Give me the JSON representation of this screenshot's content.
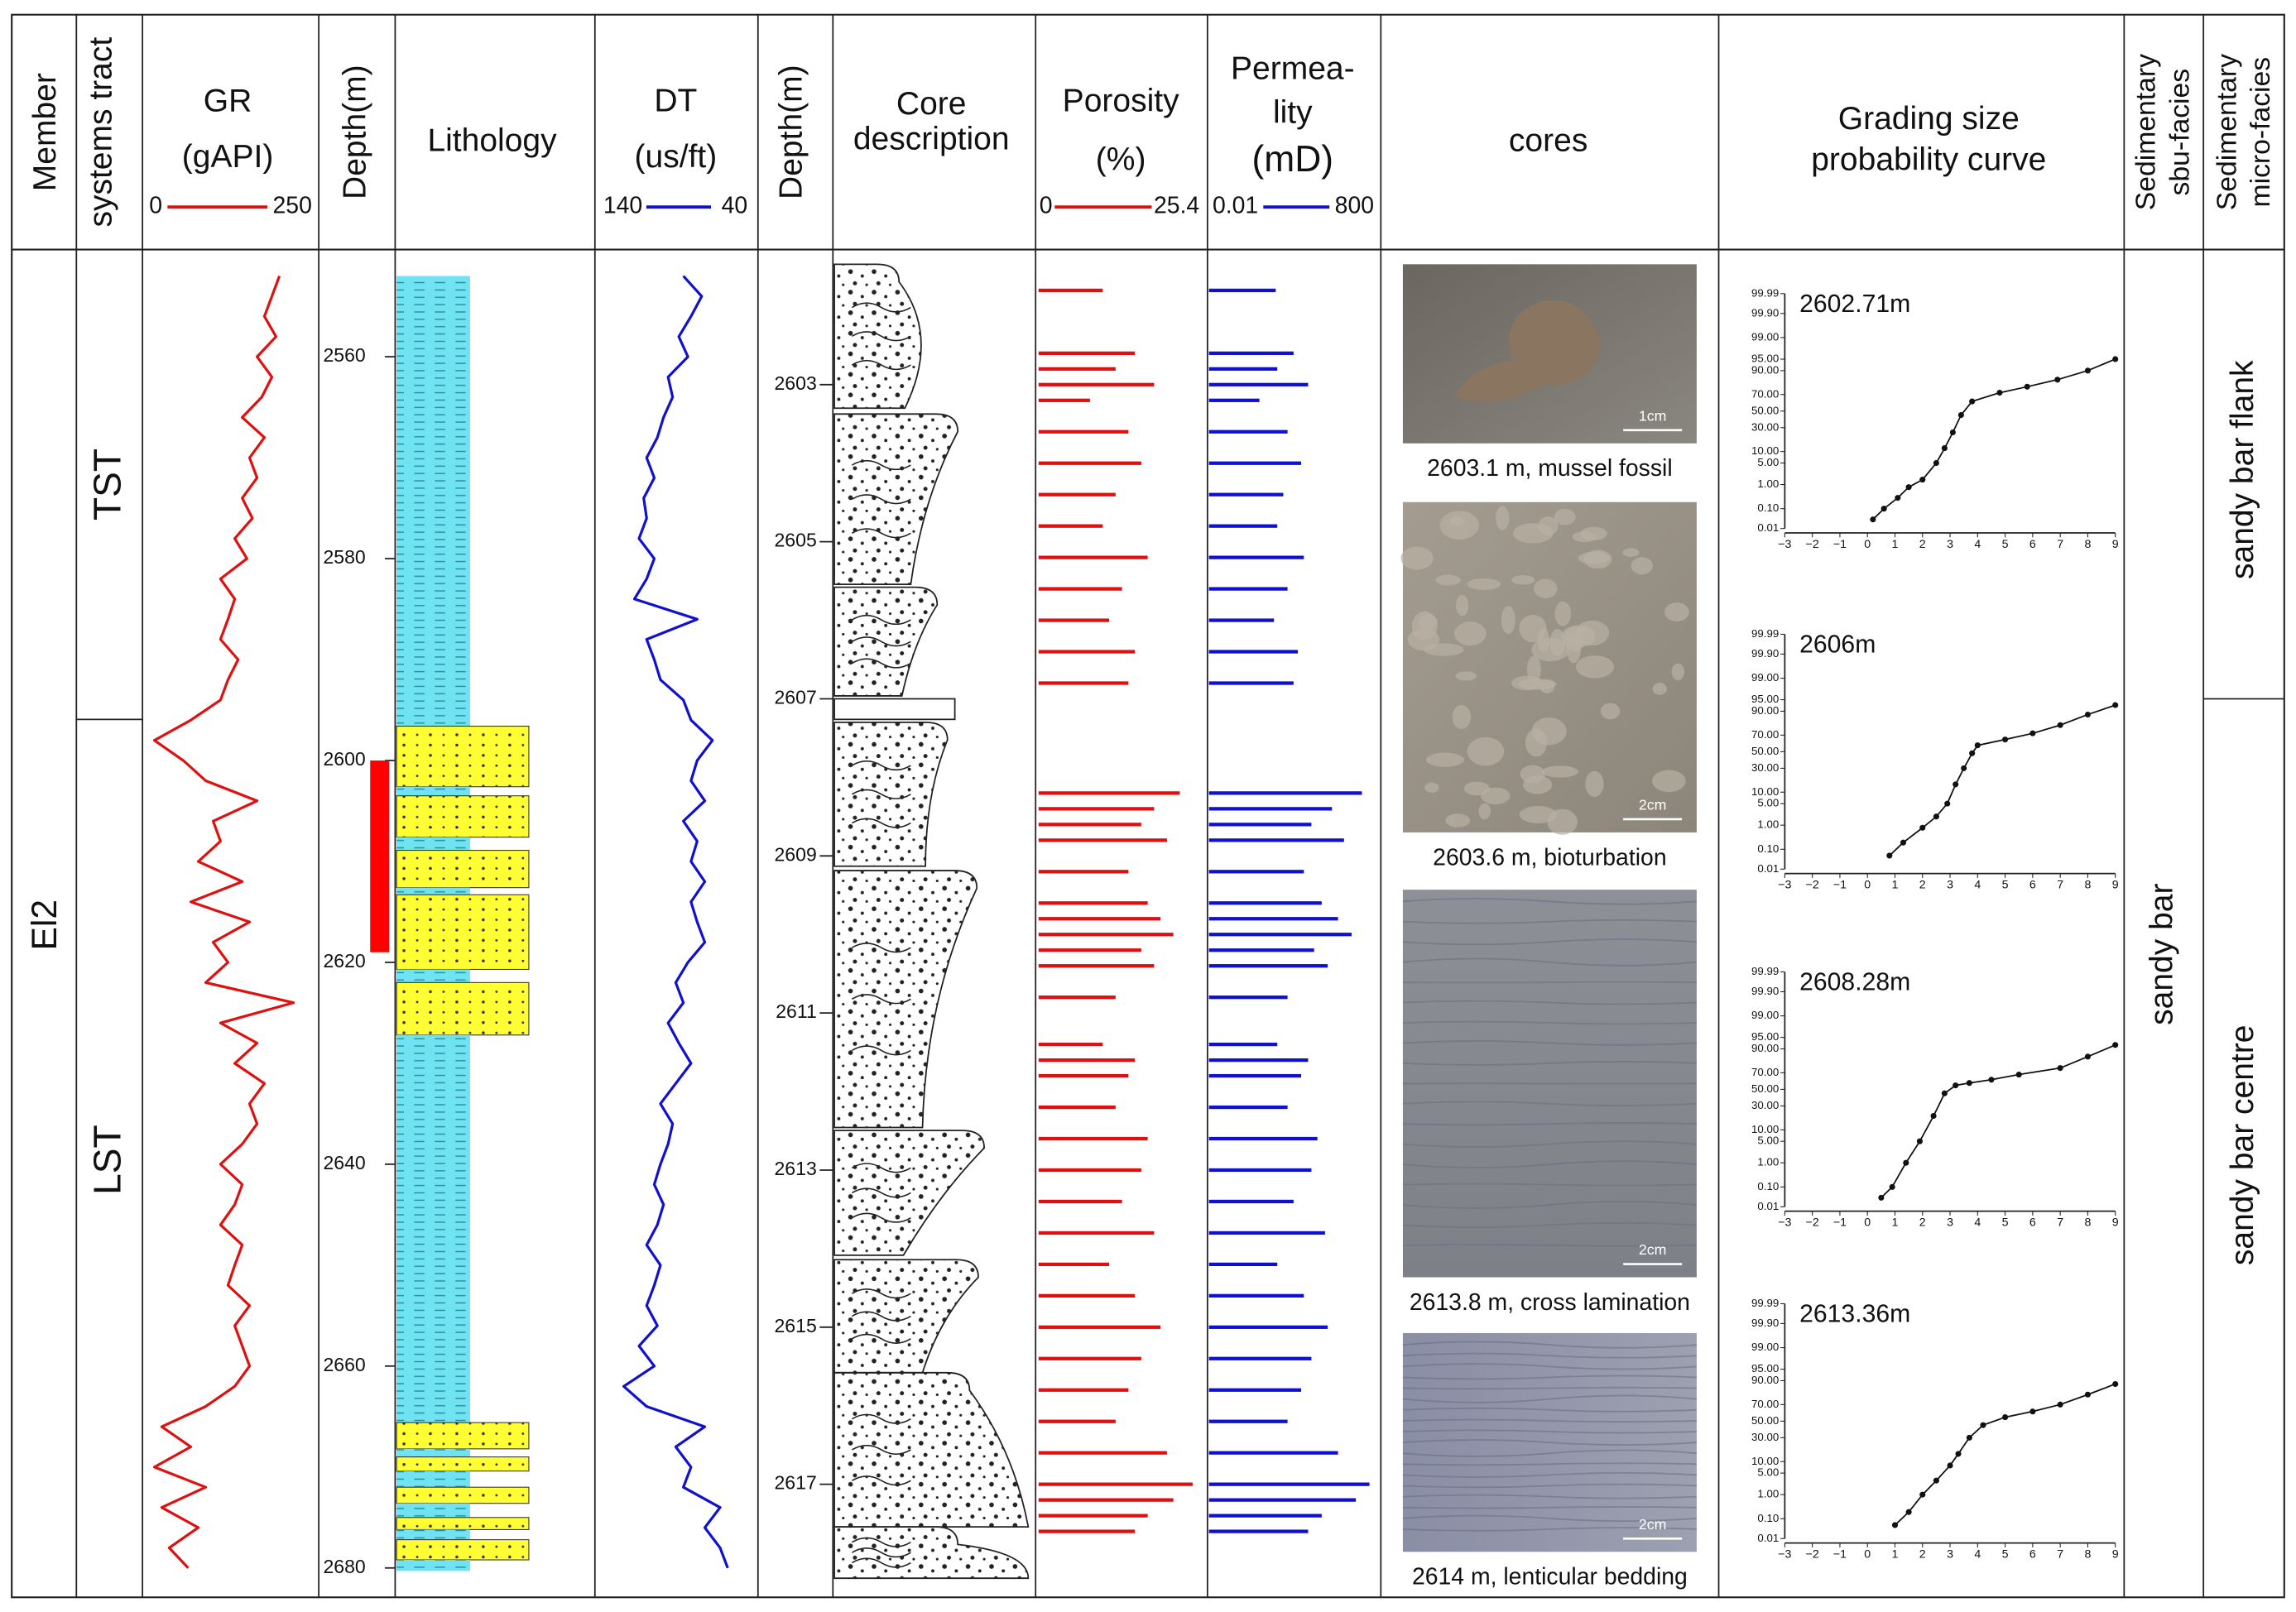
{
  "header": {
    "member": "Member",
    "systems_tract": "systems tract",
    "depth1": "Depth(m)",
    "lithology": "Lithology",
    "depth2": "Depth(m)",
    "core_description": [
      "Core",
      "description"
    ],
    "cores": "cores",
    "grading": [
      "Grading size",
      "probability curve"
    ],
    "sub_facies": [
      "Sedimentary",
      "sbu-facies"
    ],
    "micro_facies": [
      "Sedimentary",
      "micro-facies"
    ]
  },
  "member": "El2",
  "systems_tracts": [
    "TST",
    "LST"
  ],
  "sub_facies": "sandy bar",
  "micro_facies": [
    "sandy bar flank",
    "sandy bar centre"
  ],
  "depth_ticks": [
    2560,
    2580,
    2600,
    2620,
    2640,
    2660,
    2680
  ],
  "core_depth_ticks": [
    2603,
    2605,
    2607,
    2609,
    2611,
    2613,
    2615,
    2617
  ],
  "log_depth": [
    2552,
    2554,
    2556,
    2558,
    2560,
    2562,
    2564,
    2566,
    2568,
    2570,
    2572,
    2574,
    2576,
    2578,
    2580,
    2582,
    2584,
    2586,
    2588,
    2590,
    2592,
    2594,
    2596,
    2598,
    2600,
    2602,
    2604,
    2606,
    2608,
    2610,
    2612,
    2614,
    2616,
    2618,
    2620,
    2622,
    2624,
    2626,
    2628,
    2630,
    2632,
    2634,
    2636,
    2638,
    2640,
    2642,
    2644,
    2646,
    2648,
    2650,
    2652,
    2654,
    2656,
    2658,
    2660,
    2662,
    2664,
    2666,
    2668,
    2670,
    2672,
    2674,
    2676,
    2678,
    2680
  ],
  "gr": {
    "title": "GR",
    "unit": "(gAPI)",
    "xlim": [
      0,
      250
    ],
    "color": "#e01010",
    "values": [
      196,
      185,
      174,
      191,
      163,
      185,
      170,
      141,
      174,
      152,
      163,
      141,
      156,
      130,
      148,
      109,
      130,
      120,
      109,
      135,
      120,
      109,
      65,
      11,
      54,
      87,
      163,
      98,
      109,
      76,
      141,
      65,
      152,
      98,
      120,
      87,
      217,
      109,
      163,
      130,
      174,
      152,
      163,
      141,
      109,
      141,
      130,
      109,
      141,
      130,
      120,
      152,
      130,
      141,
      152,
      130,
      87,
      22,
      65,
      11,
      87,
      22,
      76,
      33,
      61
    ]
  },
  "dt": {
    "title": "DT",
    "unit": "(us/ft)",
    "xlim": [
      140,
      40
    ],
    "color": "#1010d0",
    "values": [
      85,
      73,
      80,
      88,
      82,
      95,
      92,
      98,
      102,
      109,
      104,
      111,
      109,
      114,
      104,
      109,
      117,
      76,
      109,
      104,
      100,
      85,
      80,
      66,
      76,
      80,
      71,
      85,
      76,
      80,
      71,
      80,
      76,
      71,
      82,
      90,
      85,
      95,
      88,
      80,
      90,
      100,
      92,
      95,
      100,
      104,
      98,
      102,
      109,
      100,
      104,
      109,
      102,
      114,
      104,
      124,
      109,
      71,
      90,
      80,
      85,
      61,
      71,
      61,
      56
    ]
  },
  "lithology": [
    {
      "top": 2552,
      "bottom": 2596.6,
      "color": "#6fe3f2"
    },
    {
      "top": 2596.6,
      "bottom": 2602.6,
      "color": "#ffff33"
    },
    {
      "top": 2602.6,
      "bottom": 2603.5,
      "color": "#6fe3f2"
    },
    {
      "top": 2603.5,
      "bottom": 2607.6,
      "color": "#ffff33"
    },
    {
      "top": 2607.6,
      "bottom": 2608.9,
      "color": "#6fe3f2"
    },
    {
      "top": 2608.9,
      "bottom": 2612.6,
      "color": "#ffff33"
    },
    {
      "top": 2612.6,
      "bottom": 2613.3,
      "color": "#6fe3f2"
    },
    {
      "top": 2613.3,
      "bottom": 2620.7,
      "color": "#ffff33"
    },
    {
      "top": 2620.7,
      "bottom": 2622,
      "color": "#6fe3f2"
    },
    {
      "top": 2622,
      "bottom": 2627.2,
      "color": "#ffff33"
    },
    {
      "top": 2627.2,
      "bottom": 2665.6,
      "color": "#6fe3f2"
    },
    {
      "top": 2665.6,
      "bottom": 2668.2,
      "color": "#ffff33"
    },
    {
      "top": 2668.2,
      "bottom": 2669,
      "color": "#6fe3f2"
    },
    {
      "top": 2669,
      "bottom": 2670.4,
      "color": "#ffff33"
    },
    {
      "top": 2670.4,
      "bottom": 2672,
      "color": "#6fe3f2"
    },
    {
      "top": 2672,
      "bottom": 2673.6,
      "color": "#ffff33"
    },
    {
      "top": 2673.6,
      "bottom": 2675,
      "color": "#6fe3f2"
    },
    {
      "top": 2675,
      "bottom": 2676.2,
      "color": "#ffff33"
    },
    {
      "top": 2676.2,
      "bottom": 2677.2,
      "color": "#6fe3f2"
    },
    {
      "top": 2677.2,
      "bottom": 2679.2,
      "color": "#ffff33"
    },
    {
      "top": 2679.2,
      "bottom": 2680.3,
      "color": "#6fe3f2"
    }
  ],
  "cored_interval": {
    "top": 2600,
    "bottom": 2619,
    "color": "#ff0000"
  },
  "porosity": {
    "title": "Porosity",
    "unit": "(%)",
    "xlim": [
      0,
      25.4
    ],
    "color": "#e01010"
  },
  "permeability": {
    "title": [
      "Permea-",
      "lity"
    ],
    "unit": "(mD)",
    "xlim": [
      0.01,
      800
    ],
    "log": true,
    "color": "#1010d0"
  },
  "samples": {
    "depth": [
      2601.8,
      2602.6,
      2602.8,
      2603.0,
      2603.2,
      2603.6,
      2604.0,
      2604.4,
      2604.8,
      2605.2,
      2605.6,
      2606.0,
      2606.4,
      2606.8,
      2608.2,
      2608.4,
      2608.6,
      2608.8,
      2609.2,
      2609.6,
      2609.8,
      2610.0,
      2610.2,
      2610.4,
      2610.8,
      2611.4,
      2611.6,
      2611.8,
      2612.2,
      2612.6,
      2613.0,
      2613.4,
      2613.8,
      2614.2,
      2614.6,
      2615.0,
      2615.4,
      2615.8,
      2616.2,
      2616.6,
      2617.0,
      2617.2,
      2617.4,
      2617.6
    ],
    "porosity": [
      10,
      15,
      12,
      18,
      8,
      14,
      16,
      12,
      10,
      17,
      13,
      11,
      15,
      14,
      22,
      18,
      16,
      20,
      14,
      17,
      19,
      21,
      16,
      18,
      12,
      10,
      15,
      14,
      12,
      17,
      16,
      13,
      18,
      11,
      15,
      19,
      16,
      14,
      12,
      20,
      24,
      21,
      17,
      15
    ],
    "permeability": [
      0.9,
      3,
      1,
      8,
      0.3,
      2,
      5,
      1.5,
      1,
      6,
      2,
      0.8,
      4,
      3,
      300,
      40,
      10,
      90,
      6,
      20,
      60,
      150,
      12,
      30,
      2,
      1,
      8,
      5,
      2,
      15,
      10,
      3,
      25,
      1,
      6,
      30,
      10,
      5,
      2,
      60,
      500,
      200,
      20,
      8
    ]
  },
  "photos": [
    {
      "caption": "2603.1 m, mussel fossil",
      "scale": "1cm"
    },
    {
      "caption": "2603.6 m, bioturbation",
      "scale": "2cm"
    },
    {
      "caption": "2613.8 m, cross lamination",
      "scale": "2cm"
    },
    {
      "caption": "2614 m, lenticular bedding",
      "scale": "2cm"
    }
  ],
  "grading": {
    "xlim": [
      -3,
      9
    ],
    "ylim": [
      0.01,
      99.99
    ],
    "xticks": [
      {
        "value": -3,
        "label": "−3"
      },
      {
        "value": -2,
        "label": "−2"
      },
      {
        "value": -1,
        "label": "−1"
      },
      0,
      1,
      2,
      3,
      4,
      5,
      6,
      7,
      8,
      9
    ],
    "yticks": [
      99.99,
      {
        "value": 99.9,
        "label": "99.90"
      },
      {
        "value": 99,
        "label": "99.00"
      },
      {
        "value": 95,
        "label": "95.00"
      },
      {
        "value": 90,
        "label": "90.00"
      },
      {
        "value": 70,
        "label": "70.00"
      },
      {
        "value": 50,
        "label": "50.00"
      },
      {
        "value": 30,
        "label": "30.00"
      },
      {
        "value": 10,
        "label": "10.00"
      },
      {
        "value": 5,
        "label": "5.00"
      },
      {
        "value": 1,
        "label": "1.00"
      },
      {
        "value": 0.1,
        "label": "0.10"
      },
      0.01
    ],
    "plots": [
      {
        "title": "2602.71m",
        "x": [
          0.2,
          0.6,
          1.1,
          1.5,
          2.0,
          2.5,
          2.8,
          3.1,
          3.4,
          3.8,
          4.8,
          5.8,
          6.9,
          8,
          9
        ],
        "y": [
          0.03,
          0.1,
          0.3,
          0.8,
          1.5,
          5,
          12,
          25,
          45,
          62,
          72,
          78,
          84,
          90,
          95
        ]
      },
      {
        "title": "2606m",
        "x": [
          0.8,
          1.3,
          2.0,
          2.5,
          2.9,
          3.2,
          3.5,
          3.8,
          4.0,
          5,
          6,
          7,
          8,
          9
        ],
        "y": [
          0.05,
          0.2,
          0.8,
          2,
          5,
          15,
          30,
          48,
          58,
          65,
          72,
          80,
          88,
          93
        ]
      },
      {
        "title": "2608.28m",
        "x": [
          0.5,
          0.9,
          1.4,
          1.9,
          2.4,
          2.8,
          3.2,
          3.7,
          4.5,
          5.5,
          7,
          8,
          9
        ],
        "y": [
          0.03,
          0.1,
          1,
          5,
          20,
          45,
          55,
          58,
          62,
          68,
          75,
          85,
          92
        ]
      },
      {
        "title": "2613.36m",
        "x": [
          1,
          1.5,
          2,
          2.5,
          3,
          3.3,
          3.7,
          4.2,
          5,
          6,
          7,
          8,
          9
        ],
        "y": [
          0.05,
          0.2,
          1,
          3,
          8,
          15,
          30,
          45,
          55,
          62,
          70,
          80,
          88
        ]
      }
    ]
  }
}
